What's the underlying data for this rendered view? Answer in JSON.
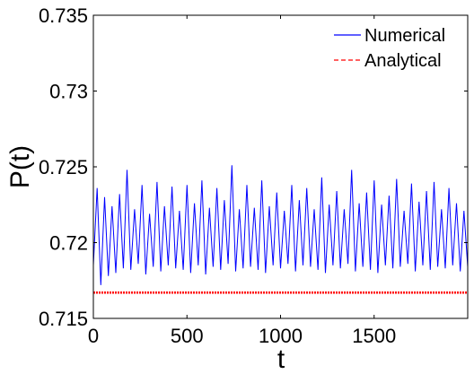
{
  "chart_data": {
    "type": "line",
    "title": "",
    "xlabel": "t",
    "ylabel": "P(t)",
    "xlim": [
      0,
      2000
    ],
    "ylim": [
      0.715,
      0.735
    ],
    "xticks": [
      0,
      500,
      1000,
      1500
    ],
    "xtick_labels": [
      "0",
      "500",
      "1000",
      "1500"
    ],
    "yticks": [
      0.715,
      0.72,
      0.725,
      0.73,
      0.735
    ],
    "ytick_labels": [
      "0.715",
      "0.72",
      "0.725",
      "0.73",
      "0.735"
    ],
    "grid": false,
    "legend_position": "top-right",
    "series": [
      {
        "name": "Numerical",
        "color": "#0000ff",
        "style": "solid",
        "x": [
          0,
          20,
          40,
          60,
          80,
          100,
          120,
          140,
          160,
          180,
          200,
          220,
          240,
          260,
          280,
          300,
          320,
          340,
          360,
          380,
          400,
          420,
          440,
          460,
          480,
          500,
          520,
          540,
          560,
          580,
          600,
          620,
          640,
          660,
          680,
          700,
          720,
          740,
          760,
          780,
          800,
          820,
          840,
          860,
          880,
          900,
          920,
          940,
          960,
          980,
          1000,
          1020,
          1040,
          1060,
          1080,
          1100,
          1120,
          1140,
          1160,
          1180,
          1200,
          1220,
          1240,
          1260,
          1280,
          1300,
          1320,
          1340,
          1360,
          1380,
          1400,
          1420,
          1440,
          1460,
          1480,
          1500,
          1520,
          1540,
          1560,
          1580,
          1600,
          1620,
          1640,
          1660,
          1680,
          1700,
          1720,
          1740,
          1760,
          1780,
          1800,
          1820,
          1840,
          1860,
          1880,
          1900,
          1920,
          1940,
          1960,
          1980,
          2000
        ],
        "y": [
          0.7185,
          0.7236,
          0.7172,
          0.723,
          0.7178,
          0.7224,
          0.718,
          0.7232,
          0.7183,
          0.7248,
          0.7182,
          0.7222,
          0.7186,
          0.7238,
          0.7179,
          0.7219,
          0.7184,
          0.724,
          0.7181,
          0.7224,
          0.7185,
          0.7237,
          0.7183,
          0.7221,
          0.7182,
          0.7238,
          0.718,
          0.7226,
          0.7185,
          0.7241,
          0.7179,
          0.7223,
          0.7184,
          0.7236,
          0.7182,
          0.7228,
          0.7186,
          0.7251,
          0.7181,
          0.7222,
          0.7183,
          0.7238,
          0.7184,
          0.7223,
          0.7182,
          0.7241,
          0.718,
          0.7224,
          0.7185,
          0.7233,
          0.7183,
          0.7221,
          0.7186,
          0.7238,
          0.7181,
          0.7228,
          0.7185,
          0.7236,
          0.7184,
          0.7222,
          0.7182,
          0.7243,
          0.718,
          0.7225,
          0.7185,
          0.7234,
          0.7183,
          0.7222,
          0.7186,
          0.7248,
          0.7181,
          0.7226,
          0.7184,
          0.7233,
          0.7182,
          0.7241,
          0.718,
          0.7225,
          0.7185,
          0.7231,
          0.7183,
          0.7242,
          0.7184,
          0.7221,
          0.7186,
          0.7239,
          0.7181,
          0.7227,
          0.7185,
          0.7234,
          0.7182,
          0.724,
          0.7184,
          0.7222,
          0.7183,
          0.7236,
          0.7185,
          0.7226,
          0.7181,
          0.7221,
          0.7184
        ]
      },
      {
        "name": "Analytical",
        "color": "#ff0000",
        "style": "dashed",
        "x": [
          0,
          250,
          500,
          750,
          1000,
          1250,
          1500,
          1750,
          2000
        ],
        "y": [
          0.7167,
          0.7167,
          0.7167,
          0.7167,
          0.7167,
          0.7167,
          0.7167,
          0.7167,
          0.7167
        ]
      }
    ]
  }
}
